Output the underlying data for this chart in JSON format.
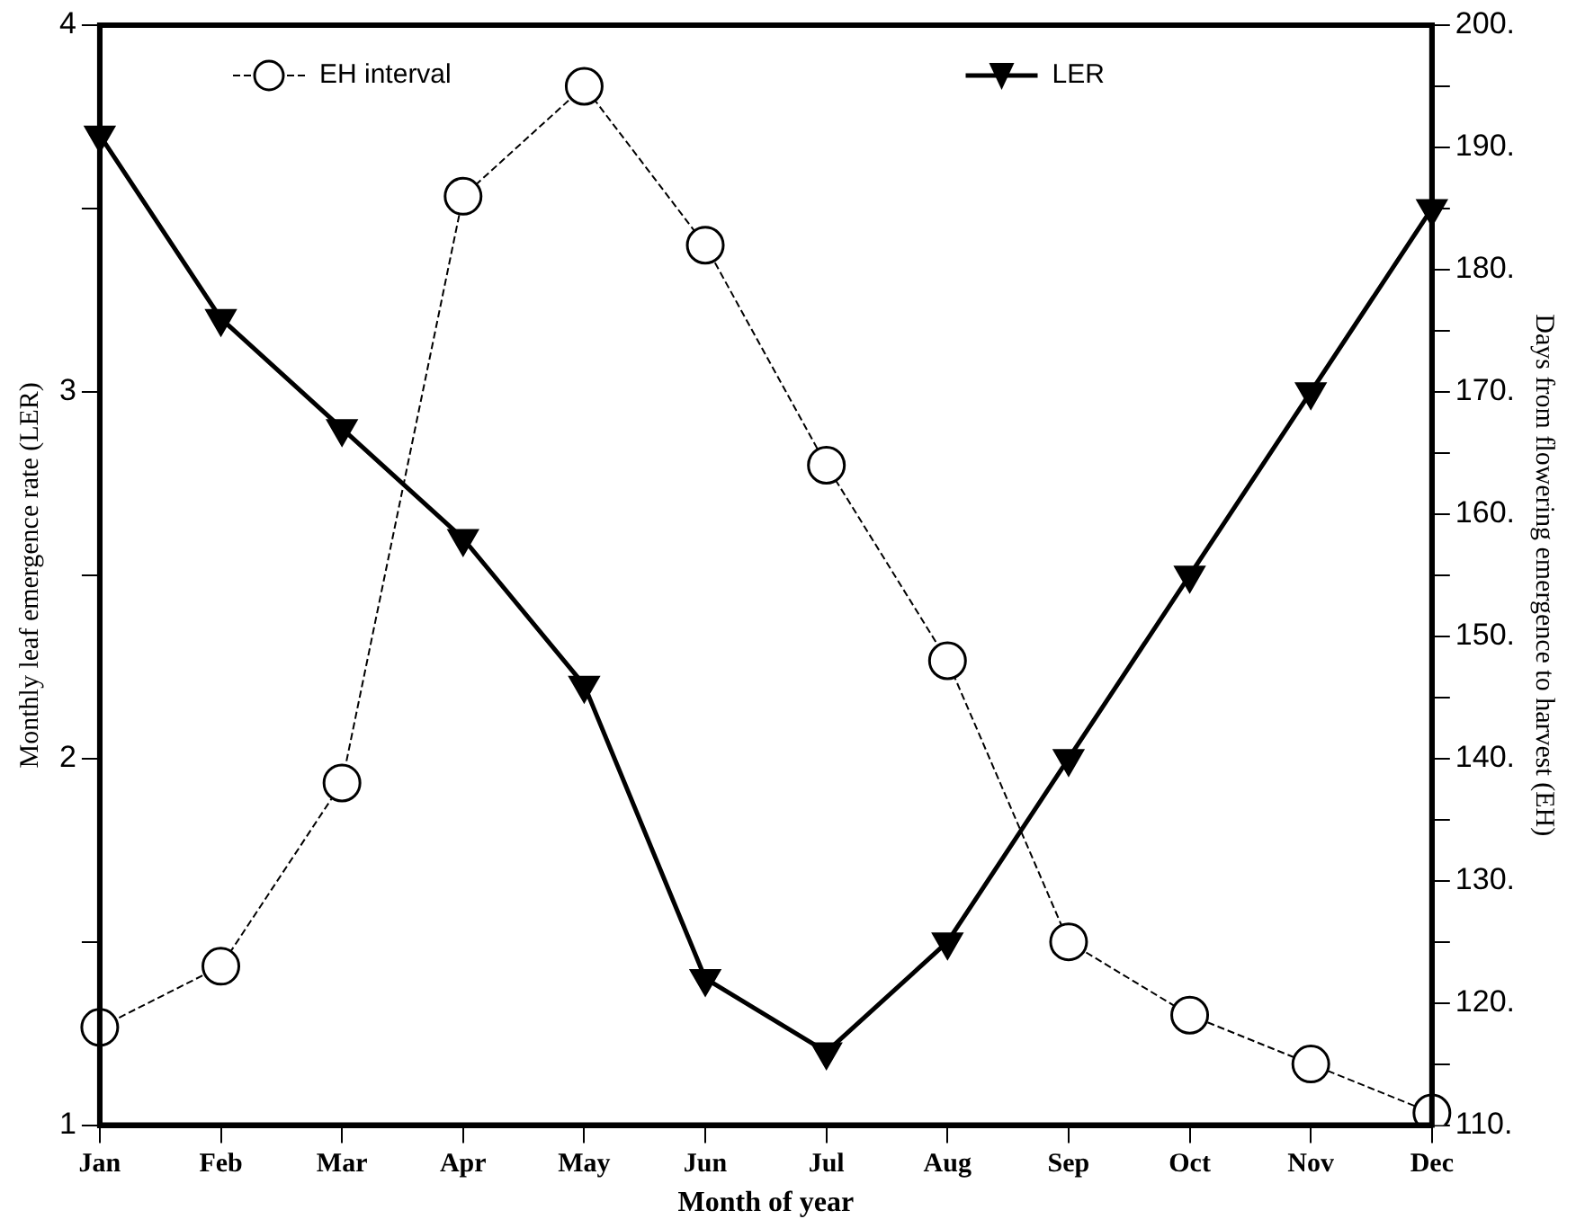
{
  "chart_data": {
    "type": "line",
    "xlabel": "Month of year",
    "ylabel": "Monthly leaf emergence rate (LER)",
    "y2label": "Days from flowering emergence to harvest (EH)",
    "categories": [
      "Jan",
      "Feb",
      "Mar",
      "Apr",
      "May",
      "Jun",
      "Jul",
      "Aug",
      "Sep",
      "Oct",
      "Nov",
      "Dec"
    ],
    "series": [
      {
        "name": "EH interval",
        "color": "#000000",
        "axis": "y2",
        "marker": "circle",
        "line_style": "dashed",
        "values": [
          118,
          123,
          138,
          186,
          195,
          182,
          164,
          148,
          125,
          119,
          115,
          111
        ]
      },
      {
        "name": "LER",
        "color": "#000000",
        "marker": "triangle",
        "line_style": "solid",
        "values": [
          3.7,
          3.2,
          2.9,
          2.6,
          2.2,
          1.4,
          1.2,
          1.5,
          2.0,
          2.5,
          3.0,
          3.5
        ]
      }
    ],
    "ylim": [
      1,
      4
    ],
    "yticks": [
      1,
      {
        "value": 1.5,
        "label": null
      },
      2,
      {
        "value": 2.5,
        "label": null
      },
      3,
      {
        "value": 3.5,
        "label": null
      },
      4
    ],
    "y2lim": [
      110,
      200
    ],
    "y2ticks": [
      {
        "value": 110,
        "label": "110."
      },
      {
        "value": 115,
        "label": null
      },
      {
        "value": 120,
        "label": "120."
      },
      {
        "value": 125,
        "label": null
      },
      {
        "value": 130,
        "label": "130."
      },
      {
        "value": 135,
        "label": null
      },
      {
        "value": 140,
        "label": "140."
      },
      {
        "value": 145,
        "label": null
      },
      {
        "value": 150,
        "label": "150."
      },
      {
        "value": 155,
        "label": null
      },
      {
        "value": 160,
        "label": "160."
      },
      {
        "value": 165,
        "label": null
      },
      {
        "value": 170,
        "label": "170."
      },
      {
        "value": 175,
        "label": null
      },
      {
        "value": 180,
        "label": "180."
      },
      {
        "value": 185,
        "label": null
      },
      {
        "value": 190,
        "label": "190."
      },
      {
        "value": 195,
        "label": null
      },
      {
        "value": 200,
        "label": "200."
      }
    ],
    "grid": false,
    "legend": "top"
  }
}
